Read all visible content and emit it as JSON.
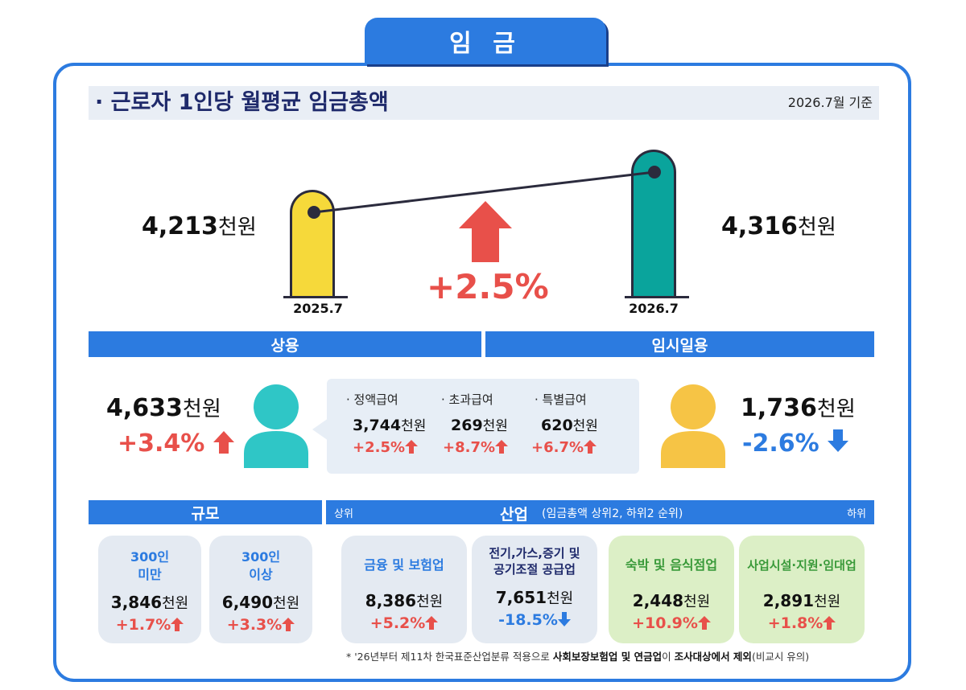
{
  "title": "임 금",
  "section": {
    "heading": "· 근로자 1인당 월평균 임금총액",
    "basis": "2026.7월 기준"
  },
  "comparison": {
    "prev": {
      "value": "4,213",
      "unit": "천원",
      "label": "2025.7"
    },
    "curr": {
      "value": "4,316",
      "unit": "천원",
      "label": "2026.7"
    },
    "change": "+2.5%"
  },
  "regular": {
    "header": "상용",
    "value": "4,633",
    "unit": "천원",
    "change": "+3.4%",
    "items": [
      {
        "label": "· 정액급여",
        "value": "3,744",
        "unit": "천원",
        "change": "+2.5%"
      },
      {
        "label": "· 초과급여",
        "value": "269",
        "unit": "천원",
        "change": "+8.7%"
      },
      {
        "label": "· 특별급여",
        "value": "620",
        "unit": "천원",
        "change": "+6.7%"
      }
    ]
  },
  "temporary": {
    "header": "임시일용",
    "value": "1,736",
    "unit": "천원",
    "change": "-2.6%"
  },
  "size": {
    "header": "규모",
    "cards": [
      {
        "label1": "300인",
        "label2": "미만",
        "value": "3,846",
        "unit": "천원",
        "change": "+1.7%"
      },
      {
        "label1": "300인",
        "label2": "이상",
        "value": "6,490",
        "unit": "천원",
        "change": "+3.3%"
      }
    ]
  },
  "industry": {
    "header": "산업",
    "note": "(임금총액 상위2, 하위2 순위)",
    "top_label": "상위",
    "bottom_label": "하위",
    "cards": [
      {
        "label1": "금융 및 보험업",
        "label2": "",
        "value": "8,386",
        "unit": "천원",
        "change": "+5.2%",
        "dir": "up"
      },
      {
        "label1": "전기,가스,증기 및",
        "label2": "공기조절 공급업",
        "value": "7,651",
        "unit": "천원",
        "change": "-18.5%",
        "dir": "down"
      },
      {
        "label1": "숙박 및 음식점업",
        "label2": "",
        "value": "2,448",
        "unit": "천원",
        "change": "+10.9%",
        "dir": "up"
      },
      {
        "label1": "사업시설·지원·임대업",
        "label2": "",
        "value": "2,891",
        "unit": "천원",
        "change": "+1.8%",
        "dir": "up"
      }
    ]
  },
  "footnote": {
    "prefix": "* '26년부터 제11차 한국표준산업분류 적용으로 ",
    "bold1": "사회보장보험업 및 연금업",
    "mid": "이 ",
    "bold2": "조사대상에서 제외",
    "suffix": "(비교시 유의)"
  },
  "colors": {
    "blue": "#2c7be0",
    "red": "#e8504a",
    "yellow": "#f6d93a",
    "teal": "#0aa49c",
    "green_text": "#3a9a3a"
  }
}
